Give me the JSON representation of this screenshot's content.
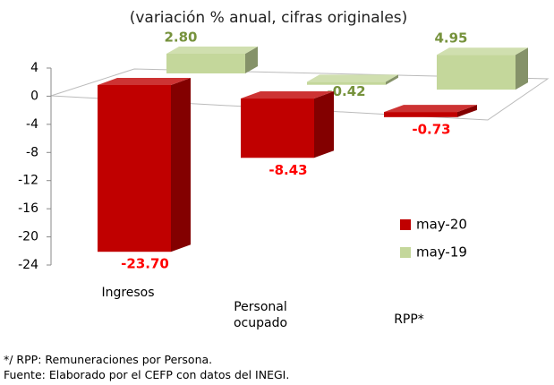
{
  "chart_data": {
    "type": "bar3d",
    "title": "(variación % anual, cifras originales)",
    "categories": [
      "Ingresos",
      "Personal ocupado",
      "RPP*"
    ],
    "series": [
      {
        "name": "may-20",
        "color": "#c00000",
        "label_color": "#ff0000",
        "values": [
          -23.7,
          -8.43,
          -0.73
        ],
        "value_labels": [
          "-23.70",
          "-8.43",
          "-0.73"
        ]
      },
      {
        "name": "may-19",
        "color": "#c4d79b",
        "label_color": "#76923c",
        "values": [
          2.8,
          -0.42,
          4.95
        ],
        "value_labels": [
          "2.80",
          "-0.42",
          "4.95"
        ]
      }
    ],
    "ylim": [
      -24,
      4
    ],
    "yticks": [
      4,
      0,
      -4,
      -8,
      -12,
      -16,
      -20,
      -24
    ],
    "legend": "right",
    "notes": [
      "*/ RPP: Remuneraciones por Persona.",
      "Fuente: Elaborado por el CEFP con datos del INEGI."
    ]
  }
}
